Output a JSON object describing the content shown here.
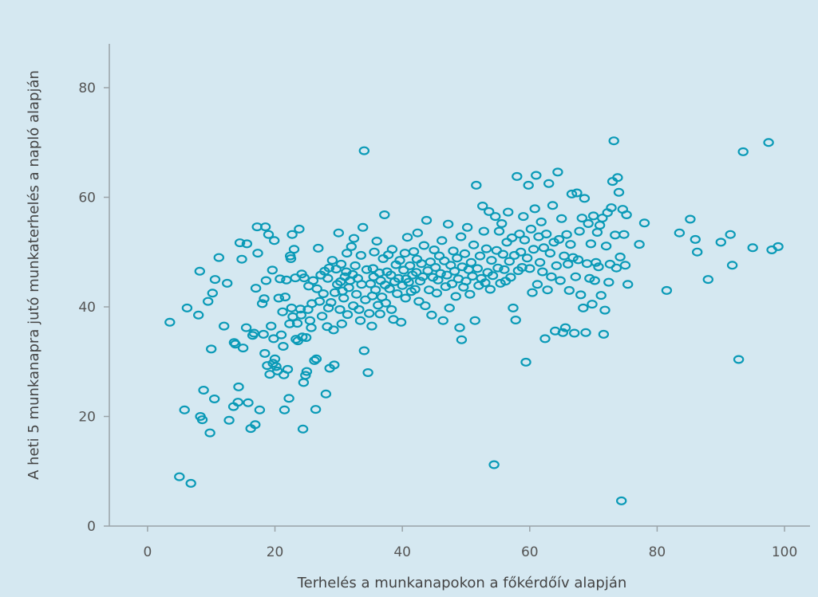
{
  "chart_data": {
    "type": "scatter",
    "title": "",
    "xlabel": "Terhelés a munkanapokon a főkérdőív alapján",
    "ylabel": "A heti 5 munkanapra jutó munkaterhelés a napló alapján",
    "xlim": [
      -6,
      104
    ],
    "ylim": [
      0,
      88
    ],
    "xticks": [
      "0",
      "20",
      "40",
      "60",
      "80",
      "100"
    ],
    "yticks": [
      "0",
      "20",
      "40",
      "60",
      "80"
    ],
    "grid": false,
    "legend": "none",
    "colors": {
      "marker": "#0a9ab7",
      "background": "#d5e8f1",
      "axis": "#9aa3a8"
    },
    "points": [
      [
        3.5,
        37.2
      ],
      [
        5,
        9
      ],
      [
        5.8,
        21.2
      ],
      [
        6.2,
        39.8
      ],
      [
        6.8,
        7.8
      ],
      [
        8,
        38.5
      ],
      [
        8.2,
        46.5
      ],
      [
        8.3,
        20
      ],
      [
        8.6,
        19.4
      ],
      [
        8.8,
        24.8
      ],
      [
        9.5,
        41
      ],
      [
        9.8,
        17
      ],
      [
        10,
        32.3
      ],
      [
        10.2,
        42.5
      ],
      [
        10.5,
        23.2
      ],
      [
        10.6,
        45
      ],
      [
        11.2,
        49
      ],
      [
        12,
        36.5
      ],
      [
        12.5,
        44.3
      ],
      [
        12.8,
        19.3
      ],
      [
        13.5,
        21.8
      ],
      [
        13.6,
        33.5
      ],
      [
        13.8,
        33.2
      ],
      [
        14.2,
        22.6
      ],
      [
        14.3,
        25.4
      ],
      [
        14.5,
        51.7
      ],
      [
        14.8,
        48.7
      ],
      [
        15,
        32.5
      ],
      [
        15.5,
        36.2
      ],
      [
        15.6,
        51.5
      ],
      [
        15.8,
        22.5
      ],
      [
        16.2,
        17.8
      ],
      [
        16.5,
        34.8
      ],
      [
        16.7,
        35.2
      ],
      [
        16.9,
        18.5
      ],
      [
        17,
        43.4
      ],
      [
        17.2,
        54.6
      ],
      [
        17.3,
        49.8
      ],
      [
        17.6,
        21.2
      ],
      [
        18,
        40.6
      ],
      [
        18.2,
        35
      ],
      [
        18.3,
        41.5
      ],
      [
        18.4,
        31.5
      ],
      [
        18.5,
        54.6
      ],
      [
        18.6,
        44.8
      ],
      [
        18.8,
        29.3
      ],
      [
        19,
        53.2
      ],
      [
        19.2,
        27.7
      ],
      [
        19.4,
        36.5
      ],
      [
        19.6,
        46.7
      ],
      [
        19.7,
        29.7
      ],
      [
        19.8,
        34.2
      ],
      [
        19.9,
        52.1
      ],
      [
        20,
        30.5
      ],
      [
        20.2,
        29.1
      ],
      [
        20.4,
        28.3
      ],
      [
        20.6,
        41.6
      ],
      [
        20.8,
        45.1
      ],
      [
        21,
        34.9
      ],
      [
        21.2,
        39.1
      ],
      [
        21.3,
        32.8
      ],
      [
        21.4,
        27.6
      ],
      [
        21.5,
        21.2
      ],
      [
        21.6,
        41.8
      ],
      [
        21.8,
        44.9
      ],
      [
        22,
        28.6
      ],
      [
        22.2,
        23.3
      ],
      [
        22.3,
        36.9
      ],
      [
        22.4,
        49.3
      ],
      [
        22.5,
        48.8
      ],
      [
        22.6,
        39.8
      ],
      [
        22.7,
        53.2
      ],
      [
        22.8,
        38.2
      ],
      [
        23,
        50.5
      ],
      [
        23.2,
        45.3
      ],
      [
        23.3,
        34.1
      ],
      [
        23.5,
        37
      ],
      [
        23.6,
        33.8
      ],
      [
        23.8,
        54.2
      ],
      [
        24,
        39.6
      ],
      [
        24.1,
        38.5
      ],
      [
        24.2,
        46
      ],
      [
        24.3,
        34.5
      ],
      [
        24.4,
        17.7
      ],
      [
        24.5,
        26.2
      ],
      [
        24.6,
        45.3
      ],
      [
        24.8,
        27.5
      ],
      [
        24.9,
        34.4
      ],
      [
        25,
        28.2
      ],
      [
        25.2,
        39.5
      ],
      [
        25.3,
        43.8
      ],
      [
        25.5,
        37.5
      ],
      [
        25.7,
        36.2
      ],
      [
        25.8,
        40.6
      ],
      [
        26,
        44.8
      ],
      [
        26.2,
        30.2
      ],
      [
        26.4,
        21.3
      ],
      [
        26.5,
        30.5
      ],
      [
        26.6,
        43.3
      ],
      [
        26.8,
        50.7
      ],
      [
        27,
        41
      ],
      [
        27.2,
        45.8
      ],
      [
        27.4,
        38.3
      ],
      [
        27.6,
        42.4
      ],
      [
        27.8,
        46.5
      ],
      [
        28,
        24.1
      ],
      [
        28.2,
        36.4
      ],
      [
        28.3,
        45.2
      ],
      [
        28.4,
        39.8
      ],
      [
        28.5,
        47.1
      ],
      [
        28.6,
        28.8
      ],
      [
        28.8,
        40.8
      ],
      [
        29,
        48.5
      ],
      [
        29.2,
        35.8
      ],
      [
        29.3,
        29.4
      ],
      [
        29.4,
        42.6
      ],
      [
        29.6,
        46.9
      ],
      [
        29.8,
        44.1
      ],
      [
        30,
        53.5
      ],
      [
        30.2,
        39.5
      ],
      [
        30.3,
        44.6
      ],
      [
        30.4,
        47.8
      ],
      [
        30.5,
        36.9
      ],
      [
        30.6,
        42.9
      ],
      [
        30.8,
        41.6
      ],
      [
        31,
        45.5
      ],
      [
        31.2,
        46.4
      ],
      [
        31.3,
        49.8
      ],
      [
        31.4,
        38.6
      ],
      [
        31.6,
        43.5
      ],
      [
        31.8,
        44.8
      ],
      [
        32,
        51
      ],
      [
        32.2,
        45.9
      ],
      [
        32.3,
        40.2
      ],
      [
        32.4,
        52.5
      ],
      [
        32.6,
        47.5
      ],
      [
        32.8,
        42.3
      ],
      [
        33,
        45.2
      ],
      [
        33.2,
        39.5
      ],
      [
        33.4,
        37.5
      ],
      [
        33.5,
        49.4
      ],
      [
        33.6,
        44.1
      ],
      [
        33.8,
        54.5
      ],
      [
        34,
        32
      ],
      [
        34,
        68.5
      ],
      [
        34.2,
        41.3
      ],
      [
        34.4,
        46.8
      ],
      [
        34.6,
        28
      ],
      [
        34.8,
        38.8
      ],
      [
        35,
        44.2
      ],
      [
        35.2,
        36.5
      ],
      [
        35.3,
        42
      ],
      [
        35.4,
        47
      ],
      [
        35.5,
        45.5
      ],
      [
        35.6,
        50
      ],
      [
        35.8,
        43.1
      ],
      [
        36,
        52
      ],
      [
        36.2,
        40.3
      ],
      [
        36.4,
        46.2
      ],
      [
        36.5,
        38.7
      ],
      [
        36.6,
        44.8
      ],
      [
        36.8,
        41.8
      ],
      [
        37,
        48.8
      ],
      [
        37.2,
        56.8
      ],
      [
        37.3,
        44
      ],
      [
        37.4,
        40.7
      ],
      [
        37.6,
        46.4
      ],
      [
        37.8,
        49.5
      ],
      [
        38,
        43.3
      ],
      [
        38.2,
        45.8
      ],
      [
        38.3,
        39.5
      ],
      [
        38.4,
        50.5
      ],
      [
        38.6,
        37.7
      ],
      [
        38.8,
        44.6
      ],
      [
        39,
        47.7
      ],
      [
        39.2,
        42.4
      ],
      [
        39.4,
        45.2
      ],
      [
        39.6,
        48.5
      ],
      [
        39.8,
        37.2
      ],
      [
        40,
        43.9
      ],
      [
        40.2,
        46.7
      ],
      [
        40.4,
        49.8
      ],
      [
        40.5,
        41.6
      ],
      [
        40.6,
        45.1
      ],
      [
        40.8,
        52.7
      ],
      [
        41,
        44.5
      ],
      [
        41.2,
        47.5
      ],
      [
        41.4,
        42.8
      ],
      [
        41.6,
        45.8
      ],
      [
        41.8,
        50.1
      ],
      [
        42,
        43.2
      ],
      [
        42.2,
        46.3
      ],
      [
        42.3,
        48.7
      ],
      [
        42.4,
        53.5
      ],
      [
        42.6,
        41
      ],
      [
        42.8,
        44.7
      ],
      [
        43,
        47.9
      ],
      [
        43.2,
        45.5
      ],
      [
        43.4,
        51.2
      ],
      [
        43.6,
        40.2
      ],
      [
        43.8,
        55.8
      ],
      [
        44,
        46.6
      ],
      [
        44.2,
        43.1
      ],
      [
        44.4,
        48.2
      ],
      [
        44.6,
        38.5
      ],
      [
        44.8,
        45.4
      ],
      [
        45,
        50.4
      ],
      [
        45.2,
        47.2
      ],
      [
        45.4,
        42.5
      ],
      [
        45.6,
        44.9
      ],
      [
        45.8,
        49.3
      ],
      [
        46,
        46.1
      ],
      [
        46.2,
        52.1
      ],
      [
        46.4,
        37.5
      ],
      [
        46.6,
        48.4
      ],
      [
        46.8,
        43.7
      ],
      [
        47,
        45.8
      ],
      [
        47.2,
        55.1
      ],
      [
        47.4,
        39.8
      ],
      [
        47.6,
        47.6
      ],
      [
        47.8,
        44.2
      ],
      [
        48,
        50.2
      ],
      [
        48.2,
        46.5
      ],
      [
        48.4,
        41.9
      ],
      [
        48.6,
        48.9
      ],
      [
        48.8,
        45.1
      ],
      [
        49,
        36.2
      ],
      [
        49.2,
        52.8
      ],
      [
        49.3,
        34
      ],
      [
        49.4,
        47.3
      ],
      [
        49.6,
        43.6
      ],
      [
        49.8,
        49.7
      ],
      [
        50,
        44.7
      ],
      [
        50.2,
        54.5
      ],
      [
        50.4,
        46.8
      ],
      [
        50.6,
        42.3
      ],
      [
        50.8,
        48.1
      ],
      [
        51,
        45.6
      ],
      [
        51.2,
        51.3
      ],
      [
        51.4,
        37.5
      ],
      [
        51.6,
        62.2
      ],
      [
        51.8,
        47
      ],
      [
        52,
        43.9
      ],
      [
        52.2,
        49.3
      ],
      [
        52.4,
        45.2
      ],
      [
        52.6,
        58.4
      ],
      [
        52.8,
        53.8
      ],
      [
        53,
        44.4
      ],
      [
        53.2,
        50.6
      ],
      [
        53.4,
        46.3
      ],
      [
        53.6,
        57.4
      ],
      [
        53.8,
        43.2
      ],
      [
        54,
        48.5
      ],
      [
        54.2,
        45.7
      ],
      [
        54.4,
        11.2
      ],
      [
        54.6,
        56.5
      ],
      [
        54.8,
        50.3
      ],
      [
        55,
        47.1
      ],
      [
        55.2,
        53.8
      ],
      [
        55.4,
        44.3
      ],
      [
        55.6,
        55.2
      ],
      [
        55.8,
        49.6
      ],
      [
        56,
        46.8
      ],
      [
        56.2,
        44.7
      ],
      [
        56.4,
        51.8
      ],
      [
        56.6,
        57.3
      ],
      [
        56.8,
        48.3
      ],
      [
        57,
        45.4
      ],
      [
        57.2,
        52.6
      ],
      [
        57.4,
        39.8
      ],
      [
        57.6,
        49.4
      ],
      [
        57.8,
        37.6
      ],
      [
        58,
        63.8
      ],
      [
        58.2,
        46.6
      ],
      [
        58.4,
        53.3
      ],
      [
        58.6,
        50
      ],
      [
        58.8,
        47.2
      ],
      [
        59,
        56.5
      ],
      [
        59.2,
        52.2
      ],
      [
        59.4,
        29.9
      ],
      [
        59.6,
        48.9
      ],
      [
        59.8,
        62.2
      ],
      [
        60,
        47
      ],
      [
        60.2,
        54.2
      ],
      [
        60.4,
        42.6
      ],
      [
        60.6,
        50.5
      ],
      [
        60.8,
        57.9
      ],
      [
        61,
        64
      ],
      [
        61.2,
        44.1
      ],
      [
        61.4,
        52.8
      ],
      [
        61.6,
        48.1
      ],
      [
        61.8,
        55.5
      ],
      [
        62,
        46.4
      ],
      [
        62.2,
        50.8
      ],
      [
        62.4,
        34.2
      ],
      [
        62.6,
        53.3
      ],
      [
        62.8,
        43.1
      ],
      [
        63,
        62.5
      ],
      [
        63.2,
        49.8
      ],
      [
        63.4,
        45.5
      ],
      [
        63.6,
        58.5
      ],
      [
        63.8,
        51.8
      ],
      [
        64,
        35.6
      ],
      [
        64.2,
        47.5
      ],
      [
        64.4,
        64.6
      ],
      [
        64.6,
        52.3
      ],
      [
        64.8,
        44.8
      ],
      [
        65,
        56.1
      ],
      [
        65.2,
        35.3
      ],
      [
        65.4,
        49.3
      ],
      [
        65.6,
        36.2
      ],
      [
        65.8,
        53.2
      ],
      [
        66,
        47.8
      ],
      [
        66.2,
        43
      ],
      [
        66.4,
        51.4
      ],
      [
        66.6,
        60.6
      ],
      [
        66.8,
        49
      ],
      [
        67,
        35.2
      ],
      [
        67.2,
        45.5
      ],
      [
        67.4,
        60.8
      ],
      [
        67.6,
        48.6
      ],
      [
        67.8,
        53.8
      ],
      [
        68,
        42.2
      ],
      [
        68.2,
        56.2
      ],
      [
        68.4,
        39.8
      ],
      [
        68.6,
        59.8
      ],
      [
        68.8,
        35.3
      ],
      [
        69,
        47.9
      ],
      [
        69.2,
        55.2
      ],
      [
        69.4,
        45.2
      ],
      [
        69.6,
        51.5
      ],
      [
        69.8,
        40.5
      ],
      [
        70,
        56.6
      ],
      [
        70.2,
        44.8
      ],
      [
        70.4,
        48.1
      ],
      [
        70.6,
        53.6
      ],
      [
        70.8,
        47.3
      ],
      [
        71,
        54.9
      ],
      [
        71.2,
        42.1
      ],
      [
        71.4,
        56.2
      ],
      [
        71.6,
        35
      ],
      [
        71.8,
        39.4
      ],
      [
        72,
        51.1
      ],
      [
        72.2,
        57.2
      ],
      [
        72.4,
        44.5
      ],
      [
        72.6,
        47.8
      ],
      [
        72.8,
        58.1
      ],
      [
        73,
        62.9
      ],
      [
        73.2,
        70.3
      ],
      [
        73.4,
        53.1
      ],
      [
        73.6,
        47.1
      ],
      [
        73.8,
        63.6
      ],
      [
        74,
        60.9
      ],
      [
        74.2,
        49.1
      ],
      [
        74.4,
        4.6
      ],
      [
        74.6,
        57.8
      ],
      [
        74.8,
        53.2
      ],
      [
        75,
        47.6
      ],
      [
        75.2,
        56.8
      ],
      [
        75.4,
        44.1
      ],
      [
        77.2,
        51.4
      ],
      [
        78,
        55.3
      ],
      [
        81.5,
        43
      ],
      [
        83.5,
        53.5
      ],
      [
        85.2,
        56
      ],
      [
        86,
        52.3
      ],
      [
        86.3,
        50
      ],
      [
        88,
        45
      ],
      [
        90,
        51.8
      ],
      [
        91.5,
        53.2
      ],
      [
        91.8,
        47.6
      ],
      [
        92.8,
        30.4
      ],
      [
        93.5,
        68.3
      ],
      [
        95,
        50.8
      ],
      [
        97.5,
        70
      ],
      [
        98,
        50.4
      ],
      [
        99,
        51
      ]
    ]
  }
}
